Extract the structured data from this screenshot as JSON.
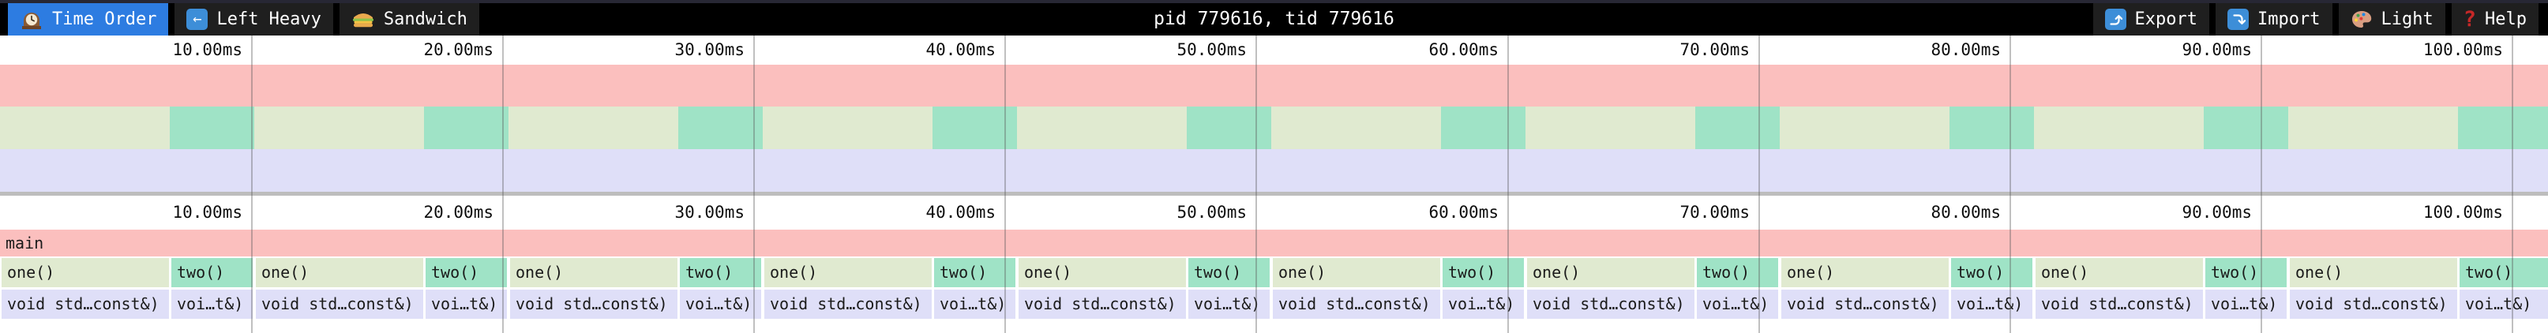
{
  "toolbar": {
    "tabs": [
      {
        "label": "Time Order",
        "active": true
      },
      {
        "label": "Left Heavy",
        "active": false
      },
      {
        "label": "Sandwich",
        "active": false
      }
    ],
    "title": "pid 779616, tid 779616",
    "actions": [
      {
        "label": "Export"
      },
      {
        "label": "Import"
      },
      {
        "label": "Light"
      },
      {
        "label": "Help"
      }
    ]
  },
  "rulers": {
    "ticks": [
      "10.00ms",
      "20.00ms",
      "30.00ms",
      "40.00ms",
      "50.00ms",
      "60.00ms",
      "70.00ms",
      "80.00ms",
      "90.00ms",
      "100.00ms"
    ]
  },
  "flamegraph": {
    "root_label": "main",
    "cycles": 10,
    "child_a_label": "one()",
    "child_b_label": "two()",
    "leaf_wide_label": "void std…const&)",
    "leaf_narrow_label": "voi…t&)"
  },
  "chart_data": {
    "type": "flamegraph",
    "unit": "ms",
    "x_ticks_ms": [
      10,
      20,
      30,
      40,
      50,
      60,
      70,
      80,
      90,
      100
    ],
    "visible_duration_ms": 101.4,
    "depth": 3,
    "pattern": {
      "root": {
        "label": "main",
        "start_ms": 0,
        "end_ms": 101.4
      },
      "cycle_ms": 10.12,
      "cycles": 10,
      "per_cycle": [
        {
          "label": "one()",
          "duration_ms": 6.7,
          "child": "void std…const&)"
        },
        {
          "label": "two()",
          "duration_ms": 3.4,
          "child": "voi…t&)"
        }
      ]
    }
  },
  "colors": {
    "accent_blue": "#2d7ce1",
    "icon_blue": "#3d8ed8",
    "frame_pink": "#fbbfbe",
    "frame_green": "#e0ead0",
    "frame_teal": "#9fe3c6",
    "frame_lavender": "#dfdff8",
    "separator_gray": "#bdbdbd",
    "toolbar_black": "#000000",
    "tab_gray": "#1f1f1f",
    "help_red": "#c62828"
  }
}
